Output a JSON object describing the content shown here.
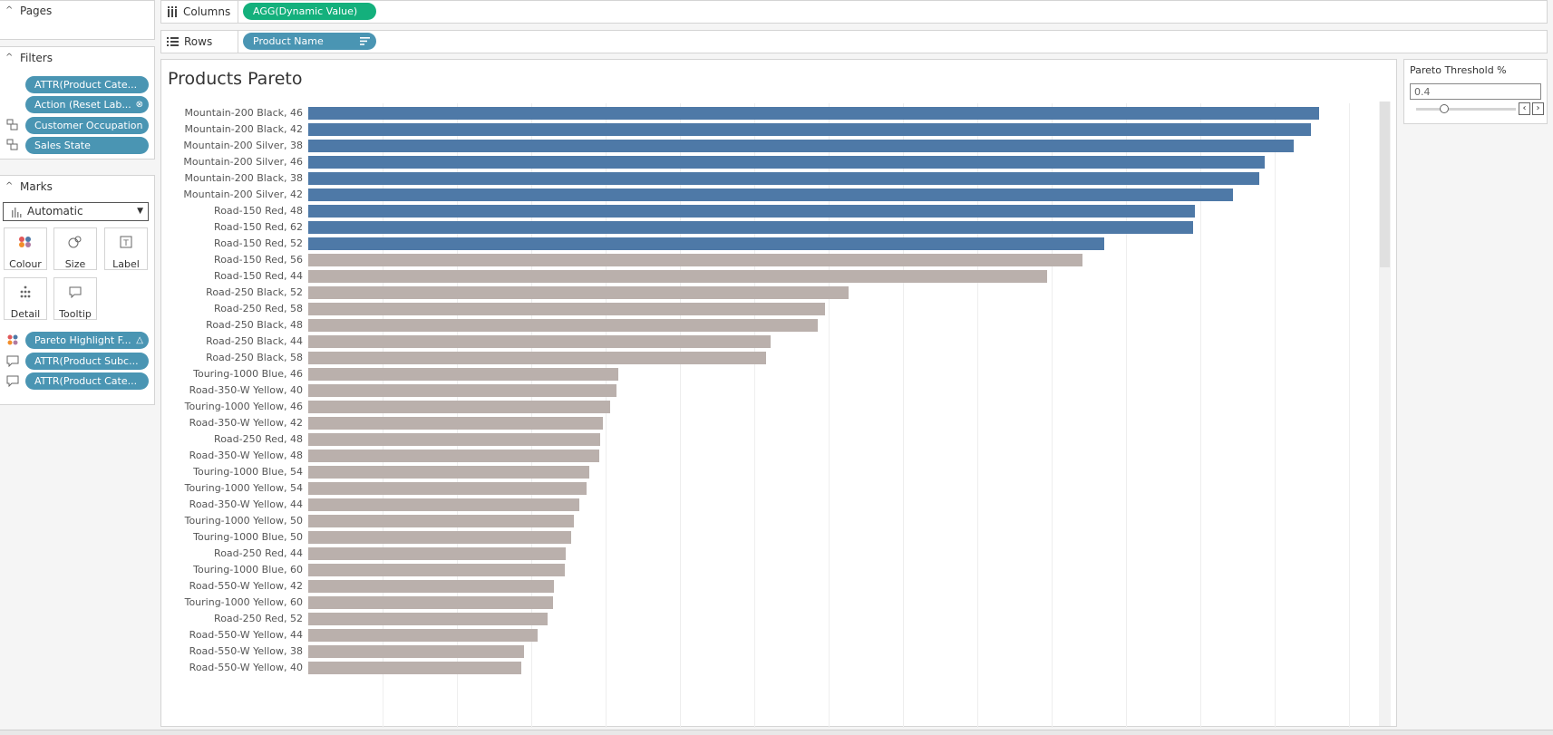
{
  "pages_card": {
    "title": "Pages"
  },
  "filters_card": {
    "title": "Filters",
    "pills": [
      "ATTR(Product Cate...",
      "Action (Reset Lab...",
      "Customer Occupation",
      "Sales State"
    ]
  },
  "marks_card": {
    "title": "Marks",
    "mark_type": "Automatic",
    "buttons": [
      "Colour",
      "Size",
      "Label",
      "Detail",
      "Tooltip"
    ],
    "pills": [
      "Pareto Highlight F...",
      "ATTR(Product Subc...",
      "ATTR(Product Cate..."
    ]
  },
  "columns_shelf": {
    "label": "Columns",
    "pill": "AGG(Dynamic Value)",
    "pill_color": "#14b07c"
  },
  "rows_shelf": {
    "label": "Rows",
    "pill": "Product Name",
    "pill_color": "#4a95b3"
  },
  "parameter": {
    "title": "Pareto Threshold %",
    "value": "0.4",
    "slider_fraction": 0.28
  },
  "colors": {
    "highlight": "#4e79a7",
    "other": "#bab0ac"
  },
  "chart_data": {
    "type": "bar",
    "title": "Products Pareto",
    "orientation": "horizontal",
    "xlim": [
      0,
      1
    ],
    "gridlines_visible": true,
    "axis_labels_visible": false,
    "series": [
      {
        "name": "",
        "categories": [
          "Mountain-200 Black, 46",
          "Mountain-200 Black, 42",
          "Mountain-200 Silver, 38",
          "Mountain-200 Silver, 46",
          "Mountain-200 Black, 38",
          "Mountain-200 Silver, 42",
          "Road-150 Red, 48",
          "Road-150 Red, 62",
          "Road-150 Red, 52",
          "Road-150 Red, 56",
          "Road-150 Red, 44",
          "Road-250 Black, 52",
          "Road-250 Red, 58",
          "Road-250 Black, 48",
          "Road-250 Black, 44",
          "Road-250 Black, 58",
          "Touring-1000 Blue, 46",
          "Road-350-W Yellow, 40",
          "Touring-1000 Yellow, 46",
          "Road-350-W Yellow, 42",
          "Road-250 Red, 48",
          "Road-350-W Yellow, 48",
          "Touring-1000 Blue, 54",
          "Touring-1000 Yellow, 54",
          "Road-350-W Yellow, 44",
          "Touring-1000 Yellow, 50",
          "Touring-1000 Blue, 50",
          "Road-250 Red, 44",
          "Touring-1000 Blue, 60",
          "Road-550-W Yellow, 42",
          "Touring-1000 Yellow, 60",
          "Road-250 Red, 52",
          "Road-550-W Yellow, 44",
          "Road-550-W Yellow, 38",
          "Road-550-W Yellow, 40"
        ],
        "values": [
          0.945,
          0.937,
          0.921,
          0.894,
          0.889,
          0.864,
          0.829,
          0.827,
          0.744,
          0.724,
          0.691,
          0.505,
          0.483,
          0.476,
          0.432,
          0.428,
          0.29,
          0.288,
          0.282,
          0.275,
          0.273,
          0.272,
          0.263,
          0.26,
          0.253,
          0.248,
          0.246,
          0.241,
          0.24,
          0.23,
          0.229,
          0.224,
          0.214,
          0.202,
          0.199
        ],
        "highlighted": [
          true,
          true,
          true,
          true,
          true,
          true,
          true,
          true,
          true,
          false,
          false,
          false,
          false,
          false,
          false,
          false,
          false,
          false,
          false,
          false,
          false,
          false,
          false,
          false,
          false,
          false,
          false,
          false,
          false,
          false,
          false,
          false,
          false,
          false,
          false
        ]
      }
    ]
  }
}
